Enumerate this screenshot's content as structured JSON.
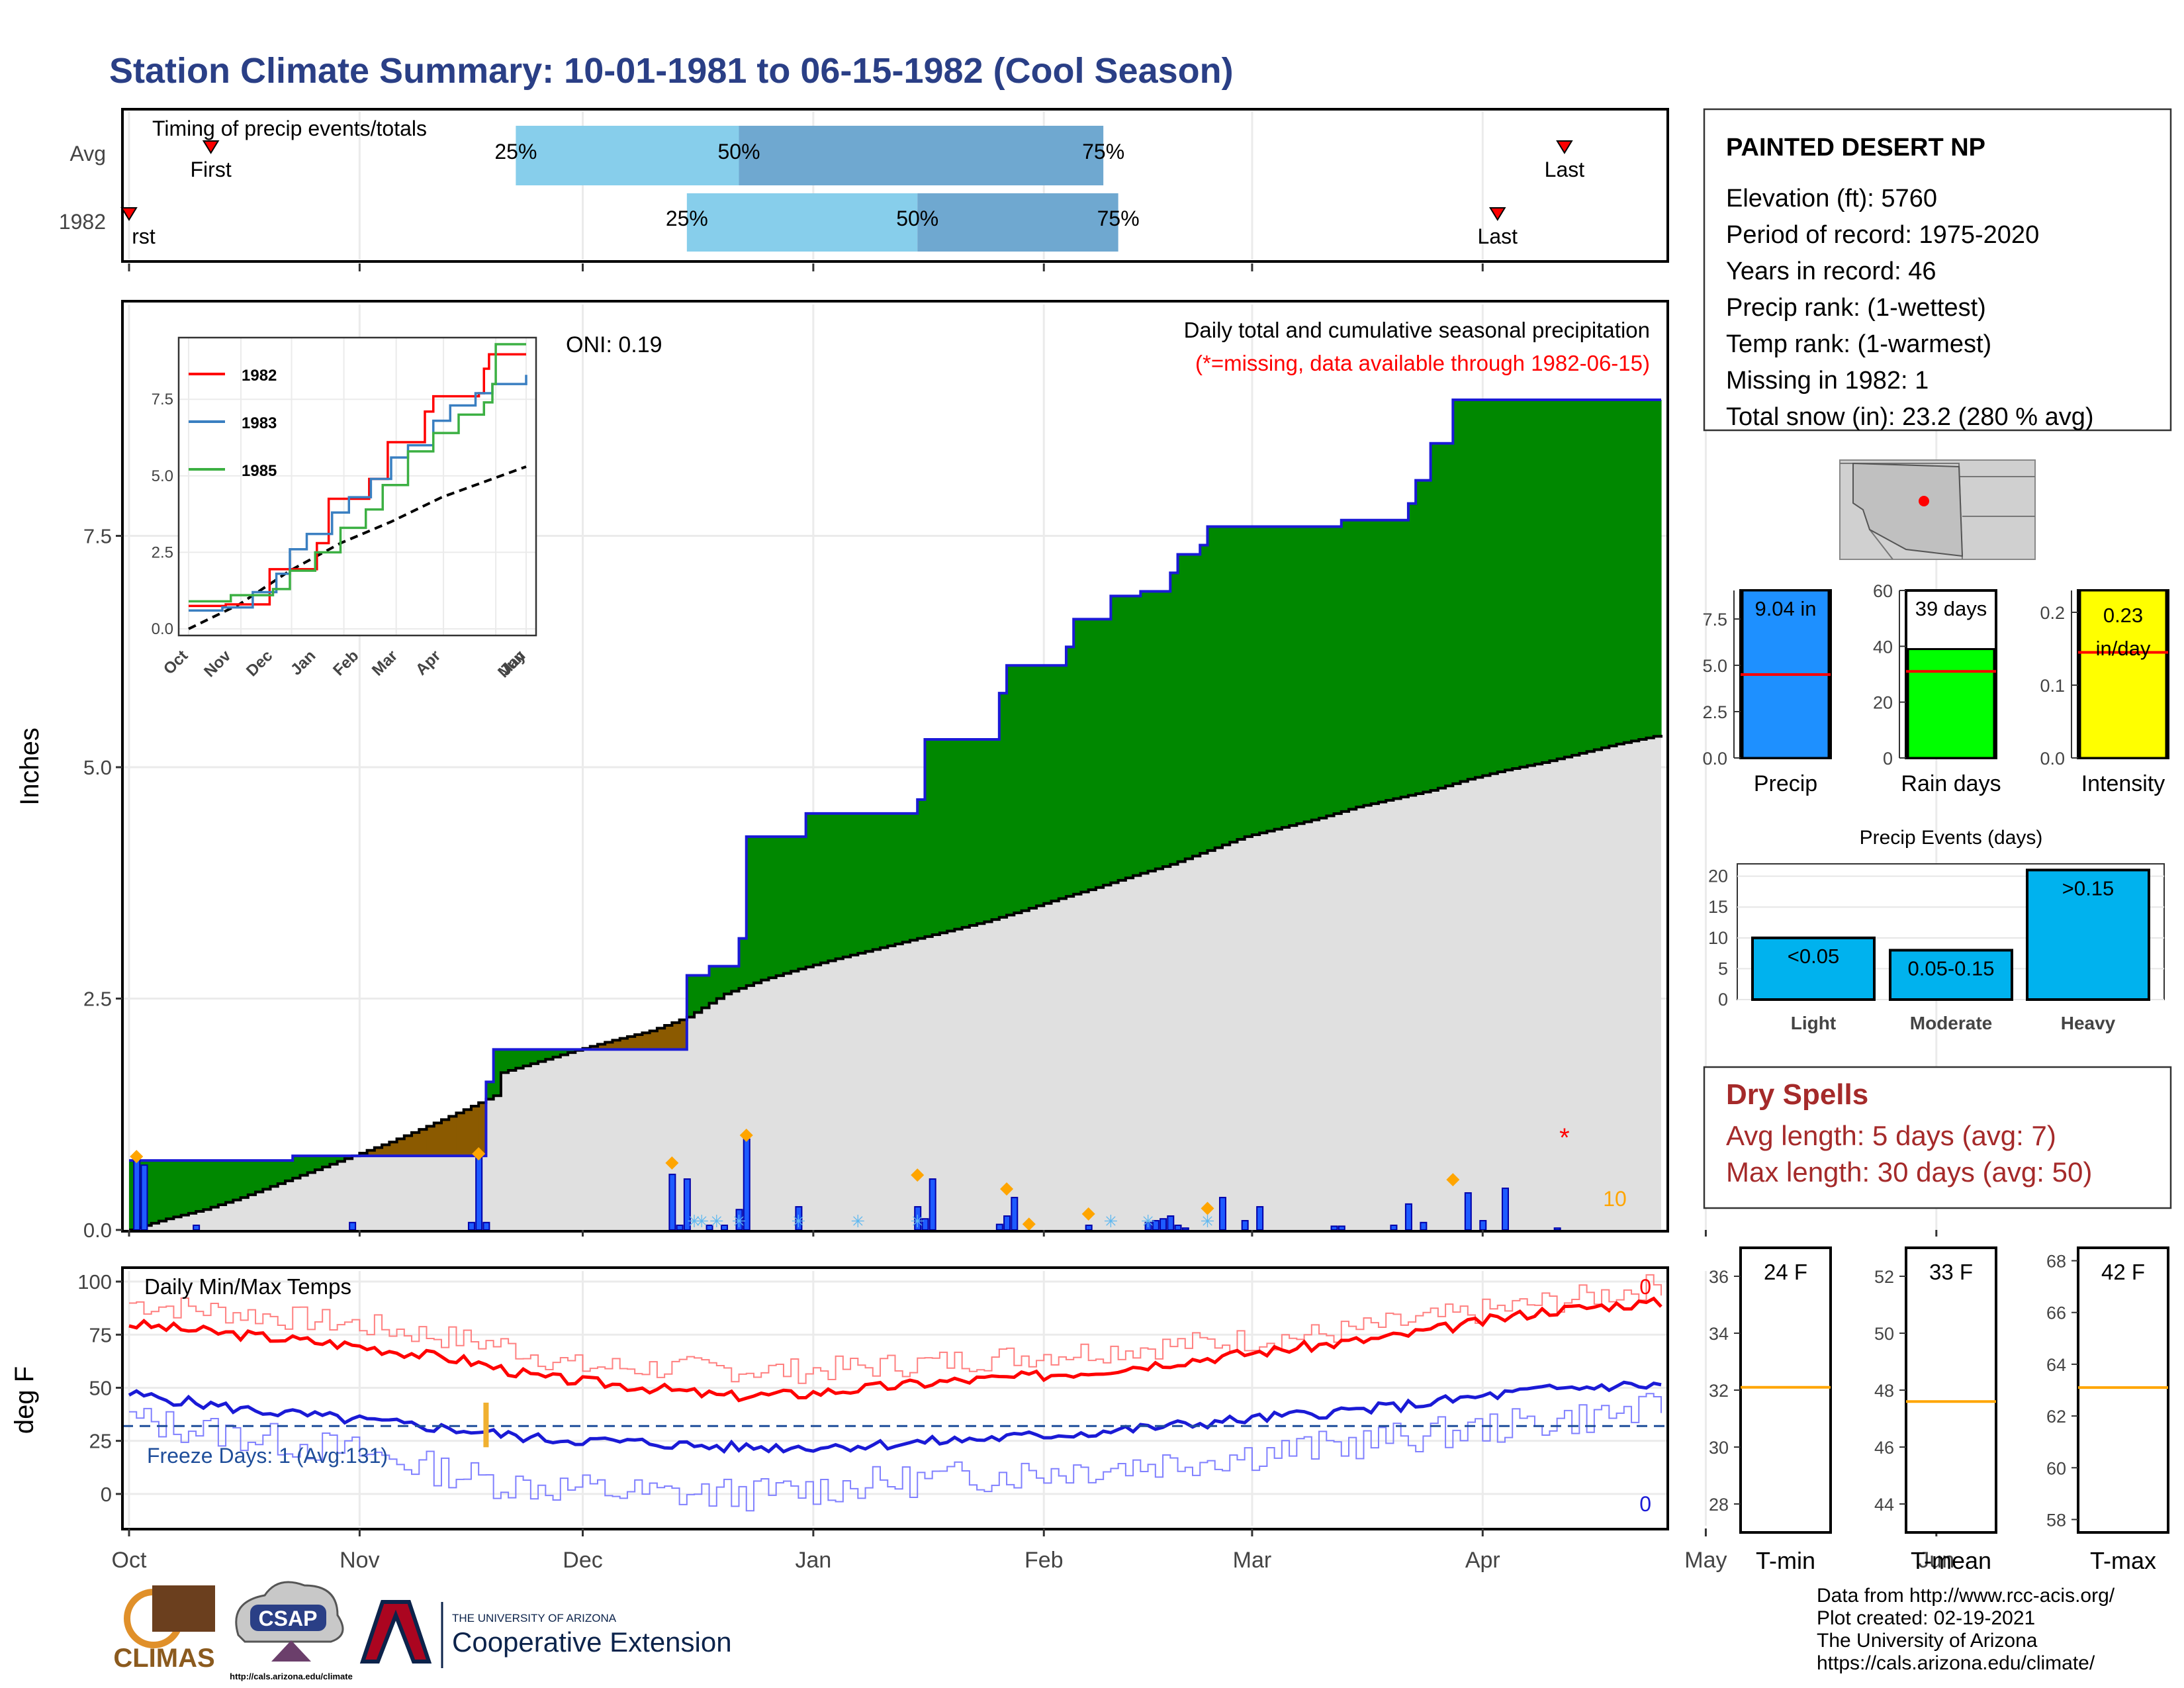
{
  "title": "Station Climate Summary: 10-01-1981 to 06-15-1982 (Cool Season)",
  "colors": {
    "title": "#2a3f86",
    "green_fill": "#008800",
    "brown_fill": "#8b5a00",
    "gray_fill": "#e0e0e0",
    "blue": "#1a1ad6",
    "red": "#ff0000",
    "orange": "#ffa500",
    "light_blue_bar": "#87ceeb",
    "mid_blue_bar": "#6fa8d0",
    "precip_bar": "#1e90ff",
    "raindays_bar": "#00ff00",
    "intensity_bar": "#ffff00",
    "events_bar": "#00b2ee",
    "dryspell": "#a52a2a"
  },
  "months": [
    "Oct",
    "Nov",
    "Dec",
    "Jan",
    "Feb",
    "Mar",
    "Apr",
    "May",
    "Jun"
  ],
  "timing": {
    "label": "Timing of precip events/totals",
    "rows": [
      "Avg",
      "1982"
    ],
    "first_label": "First",
    "last_label": "Last",
    "first_label_1982": "rst",
    "pct_labels": [
      "25%",
      "50%",
      "75%"
    ],
    "chart_data": {
      "type": "bar",
      "avg": {
        "first": 11,
        "q25": 52,
        "q50": 82,
        "q75": 131,
        "last": 193
      },
      "1982": {
        "first": 0,
        "q25": 75,
        "q50": 106,
        "q75": 133,
        "last": 184
      }
    }
  },
  "main": {
    "ylabel": "Inches",
    "yticks": [
      "0.0",
      "2.5",
      "5.0",
      "7.5"
    ],
    "oni": "ONI: 0.19",
    "legend_title": "Daily total and cumulative seasonal precipitation",
    "legend_note": "(*=missing, data available through 1982-06-15)",
    "missing_marker": "*",
    "extreme_count": "10",
    "chart_data": {
      "type": "area",
      "ylim": [
        0,
        9.5
      ],
      "cum_1982": [
        [
          0,
          0.75
        ],
        [
          8,
          0.75
        ],
        [
          22,
          0.8
        ],
        [
          48,
          0.88
        ],
        [
          48,
          1.6
        ],
        [
          49,
          1.95
        ],
        [
          75,
          1.95
        ],
        [
          75,
          2.75
        ],
        [
          78,
          2.85
        ],
        [
          82,
          2.95
        ],
        [
          82,
          3.15
        ],
        [
          83,
          3.3
        ],
        [
          83,
          4.25
        ],
        [
          91,
          4.5
        ],
        [
          106,
          4.5
        ],
        [
          106,
          4.65
        ],
        [
          107,
          4.9
        ],
        [
          107,
          5.3
        ],
        [
          116,
          5.3
        ],
        [
          117,
          5.8
        ],
        [
          118,
          6.1
        ],
        [
          126,
          6.1
        ],
        [
          126,
          6.3
        ],
        [
          127,
          6.6
        ],
        [
          132,
          6.85
        ],
        [
          136,
          6.9
        ],
        [
          140,
          7.1
        ],
        [
          141,
          7.3
        ],
        [
          144,
          7.4
        ],
        [
          145,
          7.6
        ],
        [
          162,
          7.6
        ],
        [
          163,
          7.67
        ],
        [
          172,
          7.7
        ],
        [
          172,
          7.85
        ],
        [
          173,
          8.1
        ],
        [
          175,
          8.5
        ],
        [
          178,
          8.6
        ],
        [
          178,
          8.97
        ],
        [
          206,
          8.97
        ]
      ],
      "cum_normal": [
        [
          0,
          0
        ],
        [
          5,
          0.12
        ],
        [
          10,
          0.22
        ],
        [
          15,
          0.35
        ],
        [
          20,
          0.5
        ],
        [
          25,
          0.65
        ],
        [
          30,
          0.8
        ],
        [
          35,
          0.95
        ],
        [
          40,
          1.12
        ],
        [
          45,
          1.3
        ],
        [
          49,
          1.45
        ],
        [
          50,
          1.7
        ],
        [
          55,
          1.82
        ],
        [
          60,
          1.94
        ],
        [
          65,
          2.05
        ],
        [
          70,
          2.15
        ],
        [
          75,
          2.3
        ],
        [
          80,
          2.55
        ],
        [
          85,
          2.7
        ],
        [
          90,
          2.82
        ],
        [
          95,
          2.93
        ],
        [
          100,
          3.03
        ],
        [
          105,
          3.13
        ],
        [
          110,
          3.23
        ],
        [
          115,
          3.33
        ],
        [
          120,
          3.45
        ],
        [
          125,
          3.58
        ],
        [
          130,
          3.7
        ],
        [
          135,
          3.83
        ],
        [
          140,
          3.95
        ],
        [
          145,
          4.1
        ],
        [
          150,
          4.25
        ],
        [
          155,
          4.35
        ],
        [
          160,
          4.45
        ],
        [
          165,
          4.57
        ],
        [
          170,
          4.66
        ],
        [
          175,
          4.75
        ],
        [
          180,
          4.87
        ],
        [
          185,
          4.97
        ],
        [
          190,
          5.05
        ],
        [
          195,
          5.15
        ],
        [
          200,
          5.25
        ],
        [
          206,
          5.35
        ]
      ],
      "daily_bars": [
        [
          1,
          0.78
        ],
        [
          2,
          0.7
        ],
        [
          9,
          0.05
        ],
        [
          30,
          0.08
        ],
        [
          46,
          0.08
        ],
        [
          47,
          0.78
        ],
        [
          48,
          0.08
        ],
        [
          73,
          0.6
        ],
        [
          74,
          0.05
        ],
        [
          75,
          0.55
        ],
        [
          78,
          0.05
        ],
        [
          80,
          0.05
        ],
        [
          82,
          0.22
        ],
        [
          83,
          0.98
        ],
        [
          90,
          0.25
        ],
        [
          106,
          0.25
        ],
        [
          107,
          0.12
        ],
        [
          108,
          0.55
        ],
        [
          117,
          0.06
        ],
        [
          118,
          0.15
        ],
        [
          119,
          0.35
        ],
        [
          129,
          0.05
        ],
        [
          137,
          0.08
        ],
        [
          138,
          0.1
        ],
        [
          139,
          0.12
        ],
        [
          140,
          0.15
        ],
        [
          141,
          0.05
        ],
        [
          142,
          0.02
        ],
        [
          147,
          0.35
        ],
        [
          150,
          0.1
        ],
        [
          152,
          0.25
        ],
        [
          162,
          0.04
        ],
        [
          163,
          0.04
        ],
        [
          170,
          0.05
        ],
        [
          172,
          0.28
        ],
        [
          174,
          0.08
        ],
        [
          180,
          0.4
        ],
        [
          182,
          0.1
        ],
        [
          185,
          0.45
        ],
        [
          192,
          0.02
        ]
      ],
      "extreme_markers": [
        [
          1,
          0.75
        ],
        [
          47,
          0.78
        ],
        [
          73,
          0.68
        ],
        [
          83,
          0.98
        ],
        [
          106,
          0.55
        ],
        [
          118,
          0.4
        ],
        [
          121,
          0.02
        ],
        [
          129,
          0.13
        ],
        [
          145,
          0.19
        ],
        [
          178,
          0.5
        ]
      ],
      "snow_markers": [
        76,
        77,
        79,
        82,
        90,
        98,
        106,
        132,
        137,
        145
      ],
      "missing_day": 193
    }
  },
  "inset": {
    "legend": [
      "1982",
      "1983",
      "1985"
    ],
    "yticks": [
      "0.0",
      "2.5",
      "5.0",
      "7.5"
    ],
    "chart_data": {
      "type": "line",
      "ylim": [
        0,
        9.3
      ],
      "series": [
        {
          "name": "1982",
          "values": [
            [
              0,
              0.75
            ],
            [
              22,
              0.8
            ],
            [
              48,
              0.88
            ],
            [
              48,
              1.95
            ],
            [
              75,
              1.95
            ],
            [
              76,
              2.8
            ],
            [
              83,
              3.3
            ],
            [
              83,
              4.25
            ],
            [
              107,
              4.9
            ],
            [
              118,
              6.1
            ],
            [
              140,
              7.1
            ],
            [
              145,
              7.6
            ],
            [
              172,
              7.7
            ],
            [
              175,
              8.5
            ],
            [
              178,
              8.97
            ],
            [
              200,
              8.97
            ]
          ]
        },
        {
          "name": "1983",
          "values": [
            [
              0,
              0.6
            ],
            [
              20,
              0.7
            ],
            [
              38,
              1.2
            ],
            [
              52,
              1.8
            ],
            [
              60,
              2.6
            ],
            [
              70,
              3.1
            ],
            [
              85,
              3.8
            ],
            [
              95,
              4.3
            ],
            [
              108,
              4.9
            ],
            [
              120,
              5.6
            ],
            [
              130,
              6.0
            ],
            [
              145,
              6.8
            ],
            [
              155,
              7.3
            ],
            [
              170,
              7.7
            ],
            [
              180,
              8.0
            ],
            [
              200,
              8.3
            ]
          ]
        },
        {
          "name": "1985",
          "values": [
            [
              0,
              0.9
            ],
            [
              25,
              1.1
            ],
            [
              50,
              1.3
            ],
            [
              60,
              1.9
            ],
            [
              75,
              2.5
            ],
            [
              90,
              3.3
            ],
            [
              105,
              3.9
            ],
            [
              115,
              4.7
            ],
            [
              130,
              5.8
            ],
            [
              145,
              6.4
            ],
            [
              160,
              7.0
            ],
            [
              175,
              7.4
            ],
            [
              180,
              8.0
            ],
            [
              182,
              9.3
            ],
            [
              200,
              9.3
            ]
          ]
        }
      ],
      "normal": [
        [
          0,
          0
        ],
        [
          30,
          0.8
        ],
        [
          60,
          1.9
        ],
        [
          90,
          2.8
        ],
        [
          120,
          3.5
        ],
        [
          150,
          4.3
        ],
        [
          180,
          4.9
        ],
        [
          200,
          5.3
        ]
      ]
    }
  },
  "temps": {
    "title": "Daily Min/Max Temps",
    "ylabel": "deg F",
    "yticks": [
      "0",
      "25",
      "50",
      "75",
      "100"
    ],
    "freeze_label": "Freeze Days: 1 (Avg:131)",
    "count_max": "0",
    "count_min": "0",
    "chart_data": {
      "type": "line",
      "ylim": [
        -15,
        105
      ],
      "freeze_line": 32,
      "max_normal": [
        [
          0,
          80
        ],
        [
          15,
          75
        ],
        [
          30,
          70
        ],
        [
          45,
          63
        ],
        [
          55,
          55
        ],
        [
          70,
          50
        ],
        [
          80,
          46
        ],
        [
          90,
          47
        ],
        [
          100,
          50
        ],
        [
          110,
          53
        ],
        [
          120,
          55
        ],
        [
          130,
          58
        ],
        [
          140,
          62
        ],
        [
          150,
          66
        ],
        [
          160,
          70
        ],
        [
          170,
          74
        ],
        [
          180,
          80
        ],
        [
          190,
          86
        ],
        [
          200,
          89
        ],
        [
          206,
          90
        ]
      ],
      "min_normal": [
        [
          0,
          47
        ],
        [
          15,
          40
        ],
        [
          30,
          35
        ],
        [
          45,
          30
        ],
        [
          55,
          26
        ],
        [
          70,
          24
        ],
        [
          80,
          22
        ],
        [
          90,
          22
        ],
        [
          100,
          23
        ],
        [
          110,
          25
        ],
        [
          120,
          27
        ],
        [
          130,
          29
        ],
        [
          140,
          32
        ],
        [
          150,
          35
        ],
        [
          160,
          38
        ],
        [
          170,
          41
        ],
        [
          180,
          45
        ],
        [
          190,
          49
        ],
        [
          200,
          51
        ],
        [
          206,
          51
        ]
      ],
      "max_obs": [
        [
          0,
          90
        ],
        [
          30,
          80
        ],
        [
          50,
          70
        ],
        [
          60,
          60
        ],
        [
          90,
          58
        ],
        [
          100,
          60
        ],
        [
          120,
          65
        ],
        [
          140,
          70
        ],
        [
          160,
          75
        ],
        [
          180,
          85
        ],
        [
          200,
          95
        ],
        [
          206,
          99
        ]
      ],
      "min_obs": [
        [
          0,
          35
        ],
        [
          30,
          20
        ],
        [
          50,
          5
        ],
        [
          70,
          0
        ],
        [
          85,
          0
        ],
        [
          100,
          5
        ],
        [
          120,
          10
        ],
        [
          140,
          15
        ],
        [
          160,
          22
        ],
        [
          180,
          30
        ],
        [
          200,
          38
        ],
        [
          206,
          40
        ]
      ],
      "freeze_event_day": 48
    }
  },
  "station": {
    "name": "PAINTED DESERT NP",
    "lines": [
      "Elevation (ft): 5760",
      "Period of record: 1975-2020",
      "Years in record: 46",
      "Precip rank:  (1-wettest)",
      "Temp rank:  (1-warmest)",
      "Missing in 1982: 1",
      "Total snow (in): 23.2 (280 % avg)"
    ]
  },
  "mini_bars": {
    "precip": {
      "label": "Precip",
      "value_label": "9.04 in",
      "value": 9.04,
      "max": 9.04,
      "normal": 4.5,
      "ymax": 9.04,
      "ticks": [
        "0.0",
        "2.5",
        "5.0",
        "7.5"
      ],
      "tickvals": [
        0,
        2.5,
        5,
        7.5
      ]
    },
    "raindays": {
      "label": "Rain days",
      "value_label": "39 days",
      "value": 39,
      "max": 60,
      "normal": 31,
      "ymax": 60,
      "ticks": [
        "0",
        "20",
        "40",
        "60"
      ],
      "tickvals": [
        0,
        20,
        40,
        60
      ]
    },
    "intensity": {
      "label": "Intensity",
      "value_label": "0.23",
      "unit_label": "in/day",
      "value": 0.23,
      "max": 0.23,
      "normal": 0.145,
      "ymax": 0.23,
      "ticks": [
        "0.0",
        "0.1",
        "0.2"
      ],
      "tickvals": [
        0,
        0.1,
        0.2
      ]
    }
  },
  "events": {
    "title": "Precip Events (days)",
    "categories": [
      "Light",
      "Moderate",
      "Heavy"
    ],
    "bar_labels": [
      "<0.05",
      "0.05-0.15",
      ">0.15"
    ],
    "values": [
      10,
      8,
      21
    ],
    "ticks": [
      "0",
      "5",
      "10",
      "15",
      "20"
    ],
    "ylim": [
      0,
      22
    ]
  },
  "dry_spells": {
    "title": "Dry Spells",
    "avg": "Avg length: 5 days (avg: 7)",
    "max": "Max length: 30 days (avg: 50)"
  },
  "temp_boxes": [
    {
      "label": "T-min",
      "value": "24 F",
      "ticks": [
        "28",
        "30",
        "32",
        "34",
        "36"
      ],
      "tickvals": [
        28,
        30,
        32,
        34,
        36
      ],
      "ylim": [
        27,
        37
      ],
      "normal": 32.1
    },
    {
      "label": "T-mean",
      "value": "33 F",
      "ticks": [
        "44",
        "46",
        "48",
        "50",
        "52"
      ],
      "tickvals": [
        44,
        46,
        48,
        50,
        52
      ],
      "ylim": [
        43,
        53
      ],
      "normal": 47.6
    },
    {
      "label": "T-max",
      "value": "42 F",
      "ticks": [
        "58",
        "60",
        "62",
        "64",
        "66",
        "68"
      ],
      "tickvals": [
        58,
        60,
        62,
        64,
        66,
        68
      ],
      "ylim": [
        57.5,
        68.5
      ],
      "normal": 63.1
    }
  ],
  "footer": {
    "lines": [
      "Data from http://www.rcc-acis.org/",
      "Plot created: 02-19-2021",
      "The University of Arizona",
      "https://cals.arizona.edu/climate/"
    ],
    "logo_climas": "CLIMAS",
    "logo_csap": "CSAP",
    "logo_csap_url": "http://cals.arizona.edu/climate",
    "ua_line1": "THE UNIVERSITY OF ARIZONA",
    "ua_line2": "Cooperative Extension"
  }
}
